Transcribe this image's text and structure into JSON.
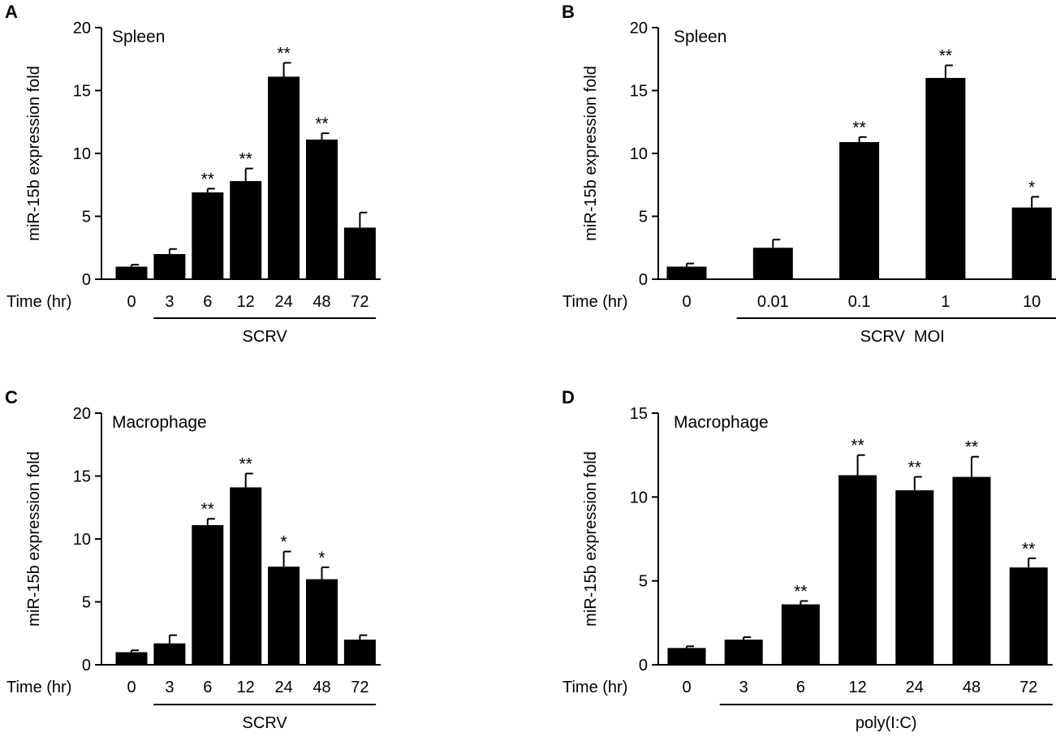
{
  "chart_data": [
    {
      "panel": "A",
      "type": "bar",
      "title": "Spleen",
      "ylabel": "miR-15b expression fold",
      "xlabel": "Time (hr)",
      "group_label": "SCRV",
      "ylim": [
        0,
        20
      ],
      "yticks": [
        0,
        5,
        10,
        15,
        20
      ],
      "categories": [
        "0",
        "3",
        "6",
        "12",
        "24",
        "48",
        "72"
      ],
      "values": [
        1.0,
        2.0,
        6.9,
        7.8,
        16.1,
        11.1,
        4.1
      ],
      "errors": [
        0.15,
        0.4,
        0.3,
        1.0,
        1.1,
        0.5,
        1.2
      ],
      "significance": [
        "",
        "",
        "**",
        "**",
        "**",
        "**",
        ""
      ],
      "group_start": 1,
      "group_end": 6
    },
    {
      "panel": "B",
      "type": "bar",
      "title": "Spleen",
      "ylabel": "miR-15b expression fold",
      "xlabel": "Time (hr)",
      "group_label": "SCRV  MOI",
      "ylim": [
        0,
        20
      ],
      "yticks": [
        0,
        5,
        10,
        15,
        20
      ],
      "categories": [
        "0",
        "0.01",
        "0.1",
        "1",
        "10"
      ],
      "values": [
        1.0,
        2.5,
        10.9,
        16.0,
        5.7
      ],
      "errors": [
        0.25,
        0.65,
        0.4,
        1.0,
        0.85
      ],
      "significance": [
        "",
        "",
        "**",
        "**",
        "*"
      ],
      "group_start": 1,
      "group_end": 4
    },
    {
      "panel": "C",
      "type": "bar",
      "title": "Macrophage",
      "ylabel": "miR-15b expression fold",
      "xlabel": "Time (hr)",
      "group_label": "SCRV",
      "ylim": [
        0,
        20
      ],
      "yticks": [
        0,
        5,
        10,
        15,
        20
      ],
      "categories": [
        "0",
        "3",
        "6",
        "12",
        "24",
        "48",
        "72"
      ],
      "values": [
        1.0,
        1.7,
        11.1,
        14.1,
        7.8,
        6.8,
        2.0
      ],
      "errors": [
        0.15,
        0.65,
        0.5,
        1.1,
        1.2,
        0.95,
        0.35
      ],
      "significance": [
        "",
        "",
        "**",
        "**",
        "*",
        "*",
        ""
      ],
      "group_start": 1,
      "group_end": 6
    },
    {
      "panel": "D",
      "type": "bar",
      "title": "Macrophage",
      "ylabel": "miR-15b expression fold",
      "xlabel": "Time (hr)",
      "group_label": "poly(I:C)",
      "ylim": [
        0,
        15
      ],
      "yticks": [
        0,
        5,
        10,
        15
      ],
      "categories": [
        "0",
        "3",
        "6",
        "12",
        "24",
        "48",
        "72"
      ],
      "values": [
        1.0,
        1.5,
        3.6,
        11.3,
        10.4,
        11.2,
        5.8
      ],
      "errors": [
        0.1,
        0.15,
        0.2,
        1.2,
        0.8,
        1.2,
        0.55
      ],
      "significance": [
        "",
        "",
        "**",
        "**",
        "**",
        "**",
        "**"
      ],
      "group_start": 1,
      "group_end": 6
    }
  ],
  "colors": {
    "bar": "#000000",
    "axis": "#000000",
    "background": "#ffffff"
  }
}
